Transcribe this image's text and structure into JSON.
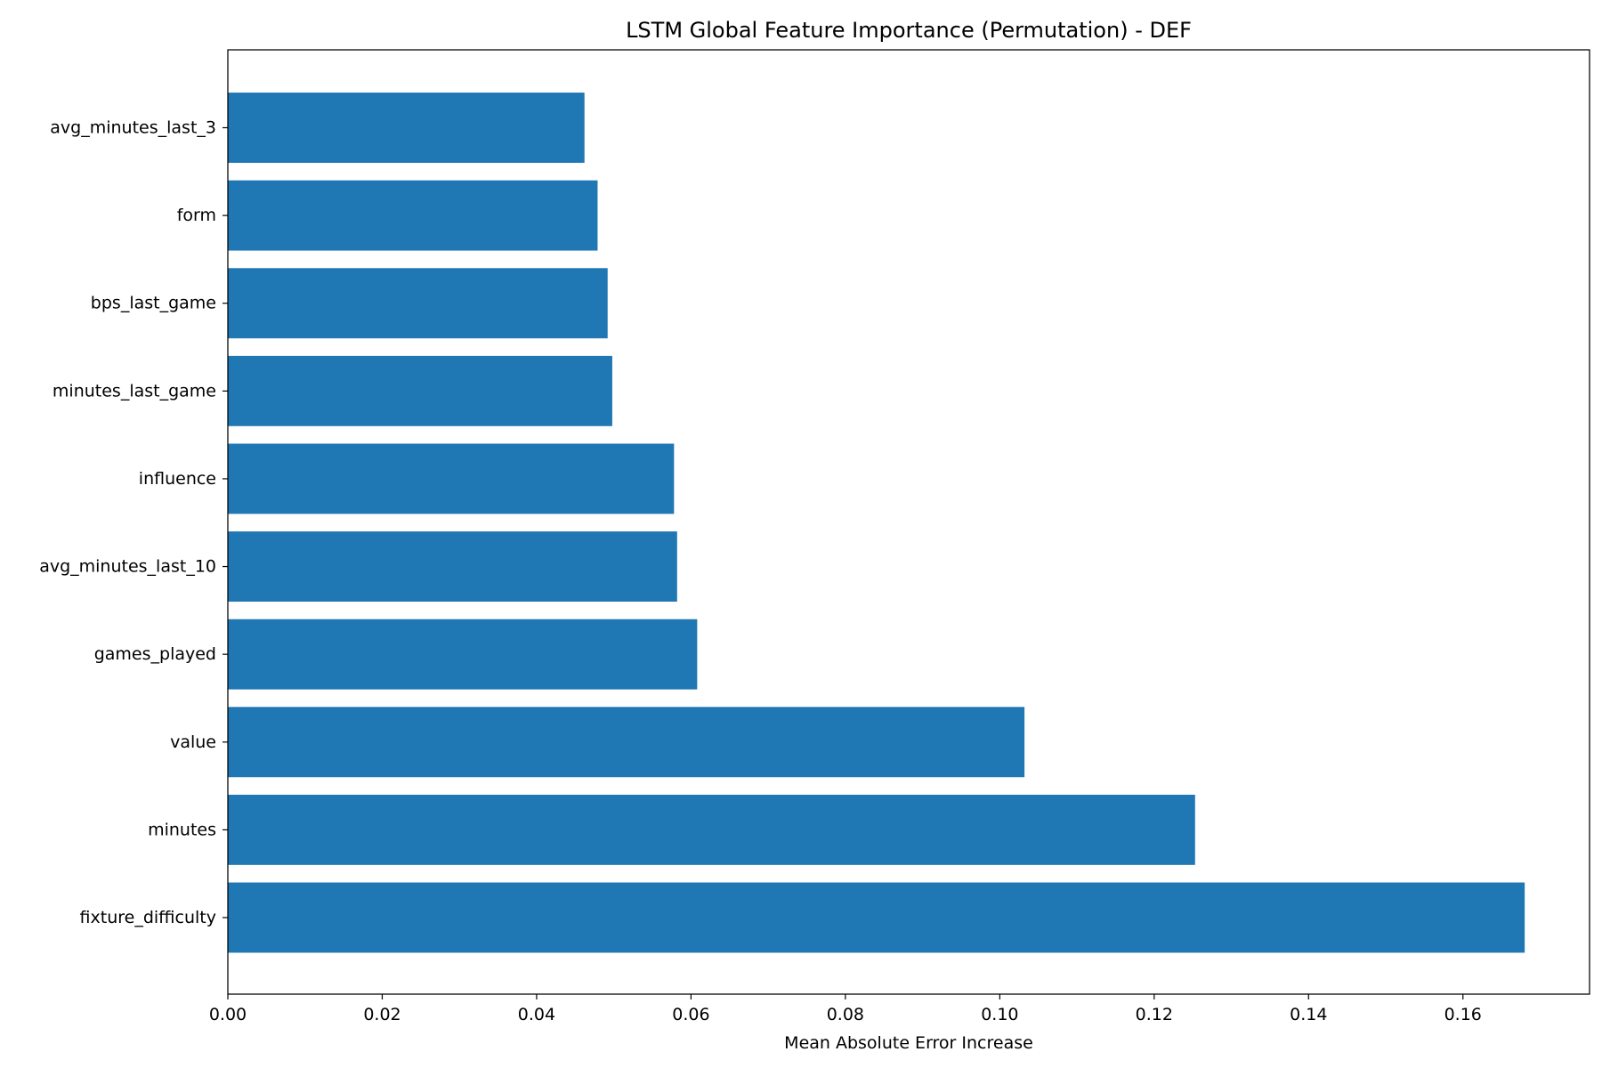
{
  "chart_data": {
    "type": "bar",
    "orientation": "horizontal",
    "title": "LSTM Global Feature Importance (Permutation) - DEF",
    "xlabel": "Mean Absolute Error Increase",
    "ylabel": "",
    "categories": [
      "avg_minutes_last_3",
      "form",
      "bps_last_game",
      "minutes_last_game",
      "influence",
      "avg_minutes_last_10",
      "games_played",
      "value",
      "minutes",
      "fixture_difficulty"
    ],
    "values": [
      0.0462,
      0.0479,
      0.0492,
      0.0498,
      0.0578,
      0.0582,
      0.0608,
      0.1032,
      0.1253,
      0.168
    ],
    "xlim": [
      0,
      0.1764
    ],
    "xticks": [
      "0.00",
      "0.02",
      "0.04",
      "0.06",
      "0.08",
      "0.10",
      "0.12",
      "0.14",
      "0.16"
    ],
    "xtick_values": [
      0,
      0.02,
      0.04,
      0.06,
      0.08,
      0.1,
      0.12,
      0.14,
      0.16
    ],
    "bar_color": "#1f77b4",
    "grid": false,
    "legend": "none"
  }
}
